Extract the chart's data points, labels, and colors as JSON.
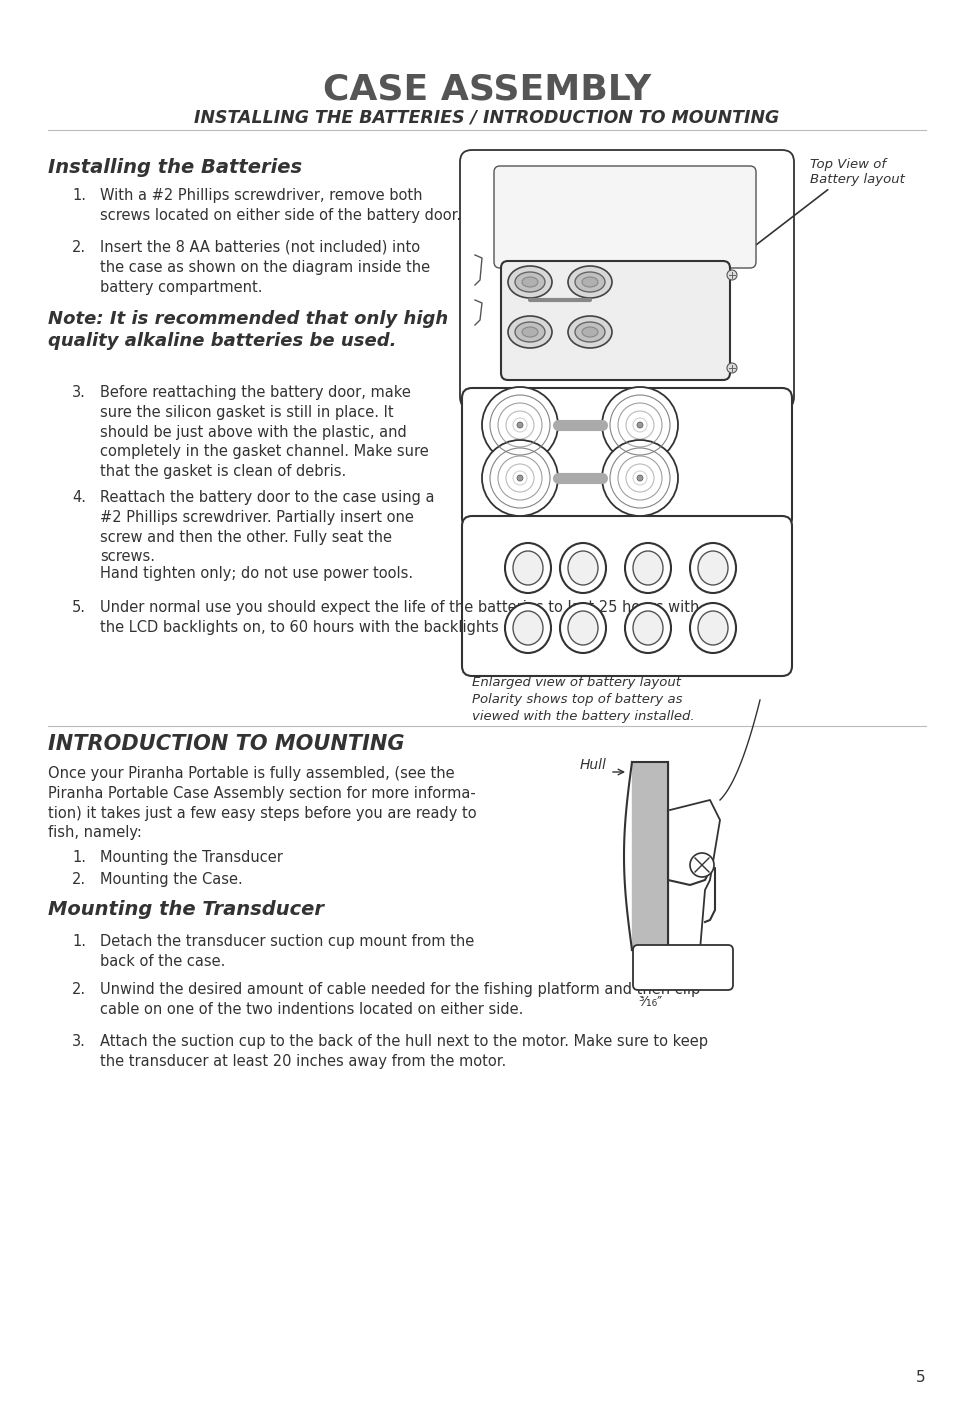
{
  "title": "CASE ASSEMBLY",
  "subtitle": "INSTALLING THE BATTERIES / INTRODUCTION TO MOUNTING",
  "bg_color": "#ffffff",
  "text_color": "#333333",
  "title_color": "#555555",
  "page_number": "5",
  "section1_heading": "Installing the Batteries",
  "item1": "With a #2 Phillips screwdriver, remove both\nscrews located on either side of the battery door.",
  "item2": "Insert the 8 AA batteries (not included) into\nthe case as shown on the diagram inside the\nbattery compartment.",
  "note_text": "Note: It is recommended that only high\nquality alkaline batteries be used.",
  "item3": "Before reattaching the battery door, make\nsure the silicon gasket is still in place. It\nshould be just above with the plastic, and\ncompletely in the gasket channel. Make sure\nthat the gasket is clean of debris.",
  "item4_line1": "Reattach the battery door to the case using a\n#2 Phillips screwdriver. Partially insert one\nscrew and then the other. Fully seat the\nscrews.",
  "item4_line2": "Hand tighten only; do not use power tools.",
  "item5": "Under normal use you should expect the life of the batteries to last 25 hours with\nthe LCD backlights on, to 60 hours with the backlights off.",
  "top_view_label": "Top View of\nBattery layout",
  "enlarged_view_label": "Enlarged view of battery layout\nPolarity shows top of battery as\nviewed with the battery installed.",
  "section2_heading": "INTRODUCTION TO MOUNTING",
  "section2_intro": "Once your Piranha Portable is fully assembled, (see the\nPiranha Portable Case Assembly section for more informa-\ntion) it takes just a few easy steps before you are ready to\nfish, namely:",
  "s2_item1": "Mounting the Transducer",
  "s2_item2": "Mounting the Case.",
  "hull_label": "Hull",
  "section3_heading": "Mounting the Transducer",
  "s3_item1": "Detach the transducer suction cup mount from the\nback of the case.",
  "s3_item2": "Unwind the desired amount of cable needed for the fishing platform and then clip\ncable on one of the two indentions located on either side.",
  "s3_item3": "Attach the suction cup to the back of the hull next to the motor. Make sure to keep\nthe transducer at least 20 inches away from the motor.",
  "fraction_label": "³⁄₁₆″"
}
